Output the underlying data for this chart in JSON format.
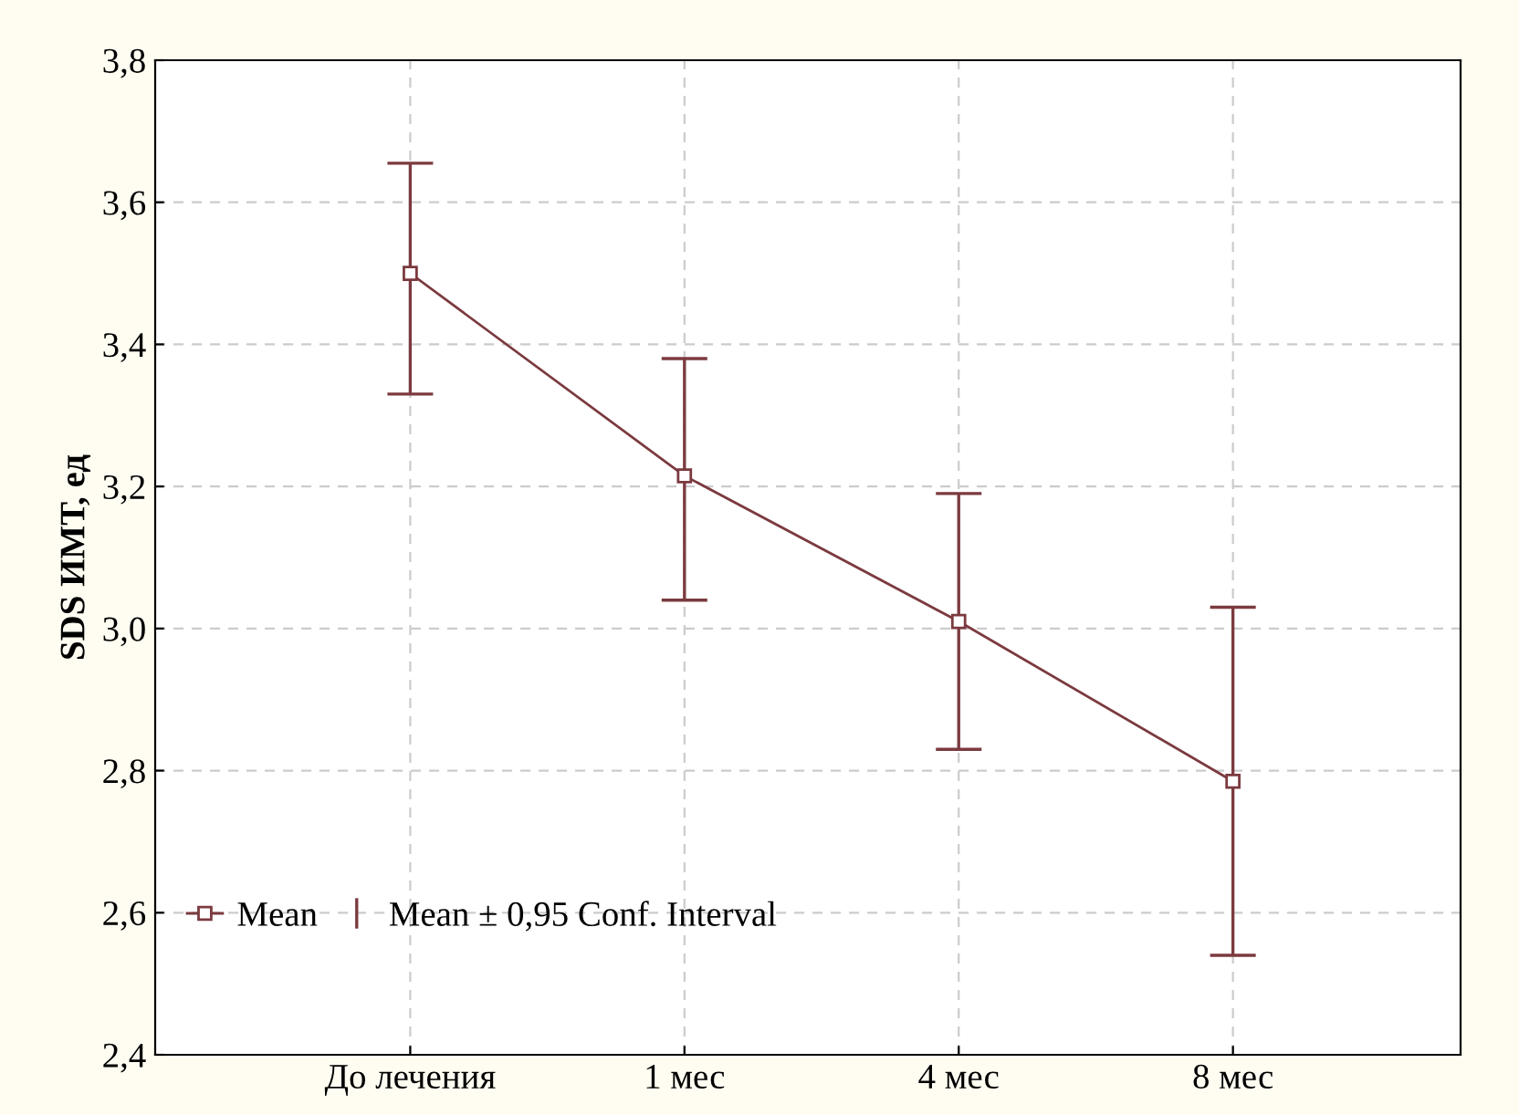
{
  "chart_data": {
    "type": "line",
    "ylabel": "SDS ИМТ, ед",
    "categories": [
      "До лечения",
      "1 мес",
      "4 мес",
      "8 мес"
    ],
    "series": [
      {
        "name": "Mean",
        "color": "#7b3a3f",
        "values": [
          3.5,
          3.215,
          3.01,
          2.785
        ],
        "errors": [
          [
            3.33,
            3.655
          ],
          [
            3.04,
            3.38
          ],
          [
            2.83,
            3.19
          ],
          [
            2.54,
            3.03
          ]
        ]
      }
    ],
    "annotations": [
      "Mean ± 0,95 Conf. Interval"
    ],
    "ylim": [
      2.4,
      3.8
    ],
    "yticks": [
      {
        "value": 2.4,
        "label": "2,4"
      },
      {
        "value": 2.6,
        "label": "2,6"
      },
      {
        "value": 2.8,
        "label": "2,8"
      },
      {
        "value": 3.0,
        "label": "3,0"
      },
      {
        "value": 3.2,
        "label": "3,2"
      },
      {
        "value": 3.4,
        "label": "3,4"
      },
      {
        "value": 3.6,
        "label": "3,6"
      },
      {
        "value": 3.8,
        "label": "3,8"
      }
    ],
    "grid": true,
    "legend": "bottom left",
    "marker": "square",
    "line_style": "solid"
  }
}
